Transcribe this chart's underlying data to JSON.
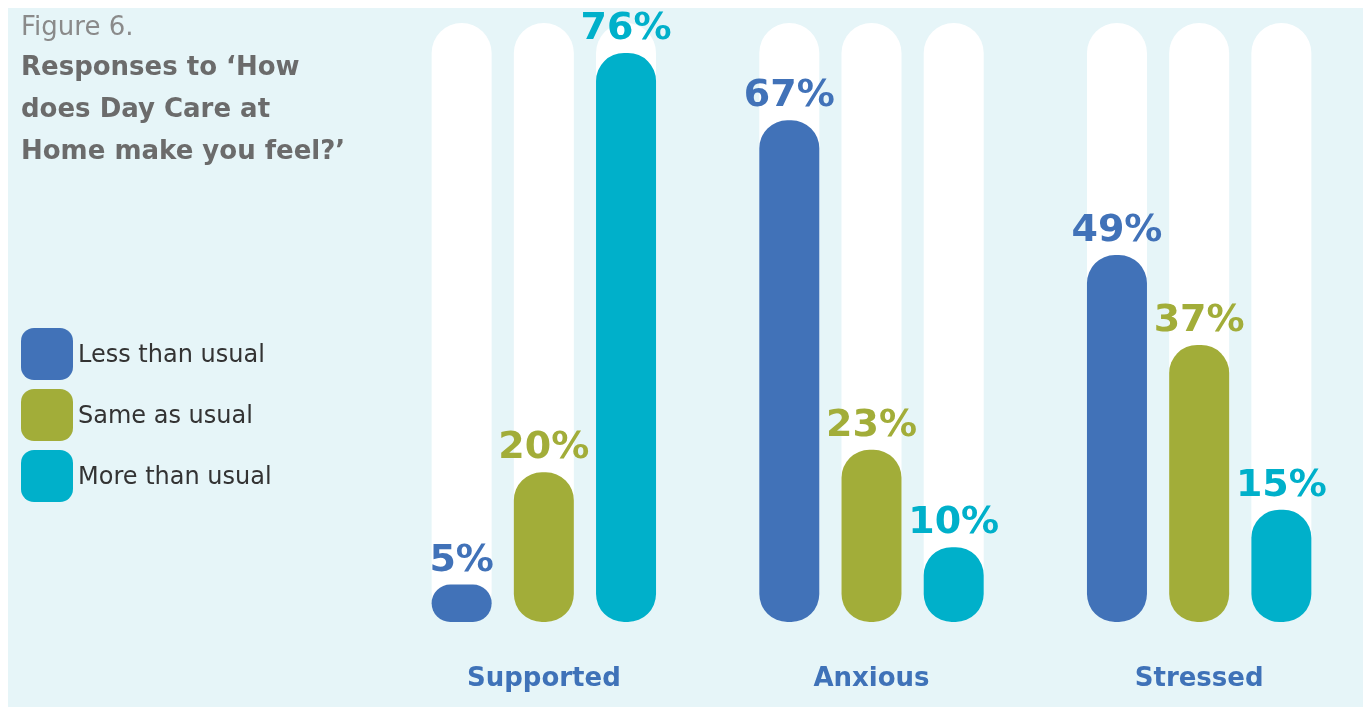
{
  "chart_data": {
    "type": "bar",
    "title": "Figure 6.",
    "subtitle": "Responses to ‘How does Day Care at Home make you feel?’",
    "categories": [
      "Supported",
      "Anxious",
      "Stressed"
    ],
    "series": [
      {
        "name": "Less than usual",
        "color": "#4172b8",
        "values": [
          5,
          67,
          49
        ],
        "value_labels": [
          "5%",
          "67%",
          "49%"
        ]
      },
      {
        "name": "Same as usual",
        "color": "#a2ad39",
        "values": [
          20,
          23,
          37
        ],
        "value_labels": [
          "20%",
          "23%",
          "37%"
        ]
      },
      {
        "name": "More than usual",
        "color": "#00b0ca",
        "values": [
          76,
          10,
          15
        ],
        "value_labels": [
          "76%",
          "10%",
          "15%"
        ]
      }
    ],
    "tick_labels": "x",
    "legend": "left",
    "grid": false
  }
}
